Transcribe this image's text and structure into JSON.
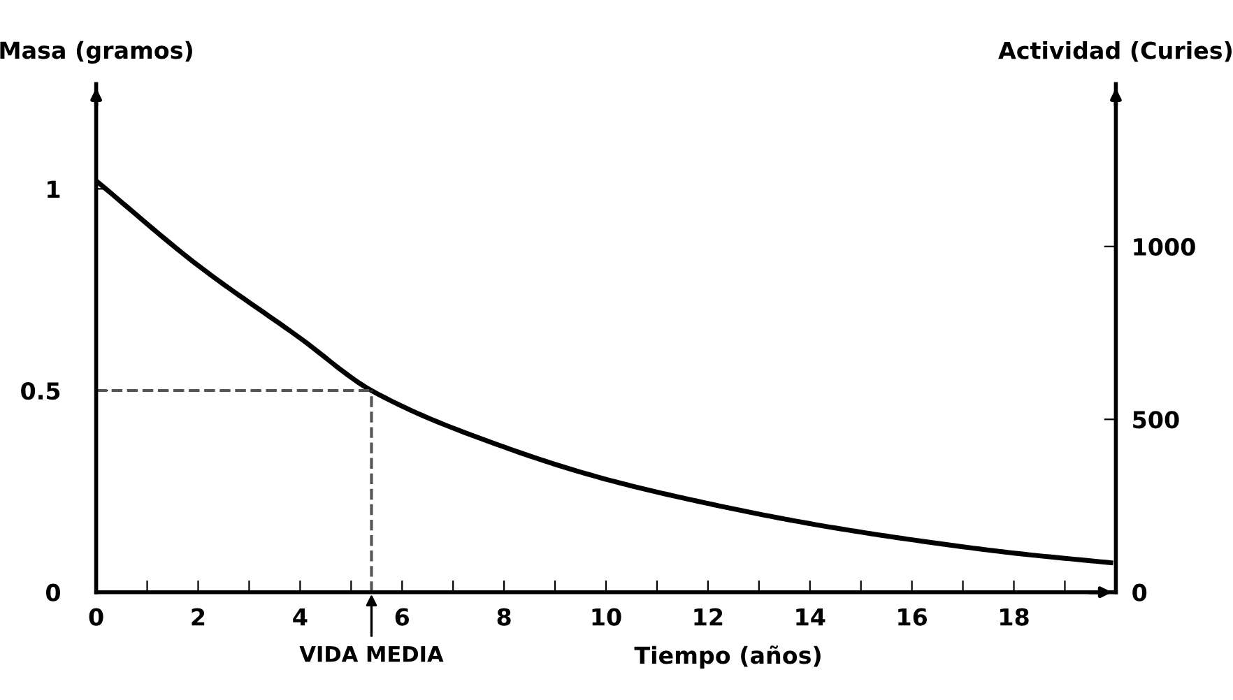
{
  "chart_data": {
    "type": "line",
    "xlabel": "Tiempo (años)",
    "ylabel": "Masa (gramos)",
    "y2label": "Actividad (Curies)",
    "x": [
      0,
      2,
      4,
      5.4,
      8,
      10,
      12,
      14,
      16,
      18,
      19.9
    ],
    "series": [
      {
        "color": "#000000",
        "values": [
          1.02,
          0.81,
          0.63,
          0.5,
          0.36,
          0.28,
          0.22,
          0.17,
          0.13,
          0.097,
          0.073
        ]
      }
    ],
    "xlim": [
      0,
      20
    ],
    "xticks": [
      0,
      {
        "value": 1,
        "label": null
      },
      2,
      {
        "value": 3,
        "label": null
      },
      4,
      {
        "value": 5,
        "label": null
      },
      6,
      {
        "value": 7,
        "label": null
      },
      8,
      {
        "value": 9,
        "label": null
      },
      10,
      {
        "value": 11,
        "label": null
      },
      12,
      {
        "value": 13,
        "label": null
      },
      14,
      {
        "value": 15,
        "label": null
      },
      16,
      {
        "value": 17,
        "label": null
      },
      18,
      {
        "value": 19,
        "label": null
      }
    ],
    "ylim": [
      0,
      1.26
    ],
    "yticks": [
      0,
      0.5,
      1
    ],
    "y2lim": [
      0,
      1470
    ],
    "y2ticks": [
      0,
      500,
      1000
    ],
    "ref_lines": [
      {
        "axis": "x",
        "value": 5.4,
        "label": "VIDA MEDIA",
        "color": "#555555",
        "line_style": "dashed"
      },
      {
        "axis": "y",
        "value": 0.5,
        "color": "#555555",
        "line_style": "dashed"
      }
    ],
    "grid": false,
    "legend": false,
    "marker": "none",
    "line_style": "solid"
  }
}
